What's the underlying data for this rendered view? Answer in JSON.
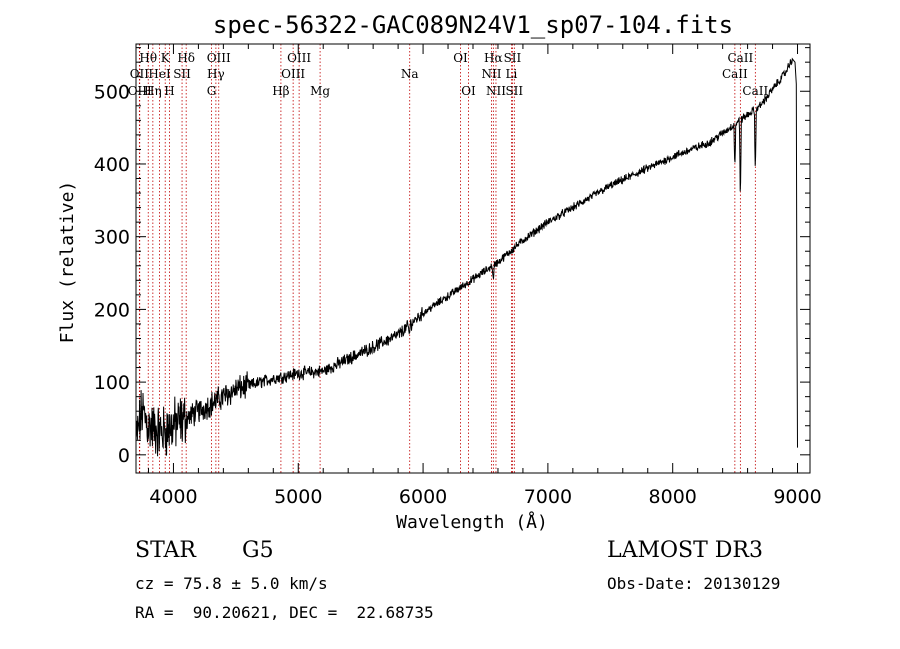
{
  "chart_data": {
    "type": "line",
    "title": "spec-56322-GAC089N24V1_sp07-104.fits",
    "xlabel": "Wavelength (Å)",
    "ylabel": "Flux (relative)",
    "xlim": [
      3700,
      9100
    ],
    "ylim": [
      -25,
      565
    ],
    "xticks": [
      4000,
      5000,
      6000,
      7000,
      8000,
      9000
    ],
    "yticks": [
      0,
      100,
      200,
      300,
      400,
      500
    ],
    "spectrum_anchors": {
      "x": [
        3700,
        3750,
        3800,
        3900,
        4000,
        4200,
        4500,
        4800,
        5000,
        5200,
        5500,
        5800,
        6000,
        6300,
        6600,
        6800,
        7000,
        7500,
        8000,
        8300,
        8500,
        8700,
        8900,
        8960
      ],
      "y": [
        20,
        60,
        40,
        30,
        40,
        60,
        90,
        105,
        112,
        115,
        140,
        165,
        195,
        230,
        265,
        295,
        320,
        370,
        410,
        430,
        455,
        480,
        525,
        545
      ]
    },
    "absorption_features": [
      {
        "x": 8498,
        "depth": 60
      },
      {
        "x": 8542,
        "depth": 110
      },
      {
        "x": 8662,
        "depth": 90
      },
      {
        "x": 6563,
        "depth": 25
      },
      {
        "x": 5890,
        "depth": 15
      }
    ],
    "lines": [
      {
        "label": "Hθ",
        "wavelength": 3798,
        "row": 0
      },
      {
        "label": "OII",
        "wavelength": 3727,
        "row": 1
      },
      {
        "label": "OIII",
        "wavelength": 3730,
        "row": 2
      },
      {
        "label": "Hη",
        "wavelength": 3835,
        "row": 2
      },
      {
        "label": "HeI",
        "wavelength": 3889,
        "row": 1
      },
      {
        "label": "K",
        "wavelength": 3934,
        "row": 0
      },
      {
        "label": "SII",
        "wavelength": 4069,
        "row": 1
      },
      {
        "label": "H",
        "wavelength": 3968,
        "row": 2
      },
      {
        "label": "Hδ",
        "wavelength": 4102,
        "row": 0
      },
      {
        "label": "OIII",
        "wavelength": 4363,
        "row": 0
      },
      {
        "label": "Hγ",
        "wavelength": 4340,
        "row": 1
      },
      {
        "label": "G",
        "wavelength": 4305,
        "row": 2
      },
      {
        "label": "Hβ",
        "wavelength": 4861,
        "row": 2
      },
      {
        "label": "OIII",
        "wavelength": 5007,
        "row": 0
      },
      {
        "label": "OIII",
        "wavelength": 4959,
        "row": 1
      },
      {
        "label": "Mg",
        "wavelength": 5175,
        "row": 2
      },
      {
        "label": "Na",
        "wavelength": 5893,
        "row": 1
      },
      {
        "label": "OI",
        "wavelength": 6300,
        "row": 0
      },
      {
        "label": "OI",
        "wavelength": 6364,
        "row": 2
      },
      {
        "label": "Hα",
        "wavelength": 6563,
        "row": 0
      },
      {
        "label": "SII",
        "wavelength": 6716,
        "row": 0
      },
      {
        "label": "NII",
        "wavelength": 6548,
        "row": 1
      },
      {
        "label": "Li",
        "wavelength": 6708,
        "row": 1
      },
      {
        "label": "NII",
        "wavelength": 6584,
        "row": 2
      },
      {
        "label": "SII",
        "wavelength": 6731,
        "row": 2
      },
      {
        "label": "CaII",
        "wavelength": 8542,
        "row": 0
      },
      {
        "label": "CaII",
        "wavelength": 8498,
        "row": 1
      },
      {
        "label": "CaII",
        "wavelength": 8662,
        "row": 2
      }
    ]
  },
  "info": {
    "object_class": "STAR",
    "subclass": "G5",
    "survey": "LAMOST DR3",
    "redshift": "cz = 75.8 ± 5.0 km/s",
    "obs_date": "Obs-Date: 20130129",
    "coords": "RA =  90.20621, DEC =  22.68735"
  },
  "colors": {
    "line_marker": "#c00000",
    "spectrum": "#000000"
  }
}
